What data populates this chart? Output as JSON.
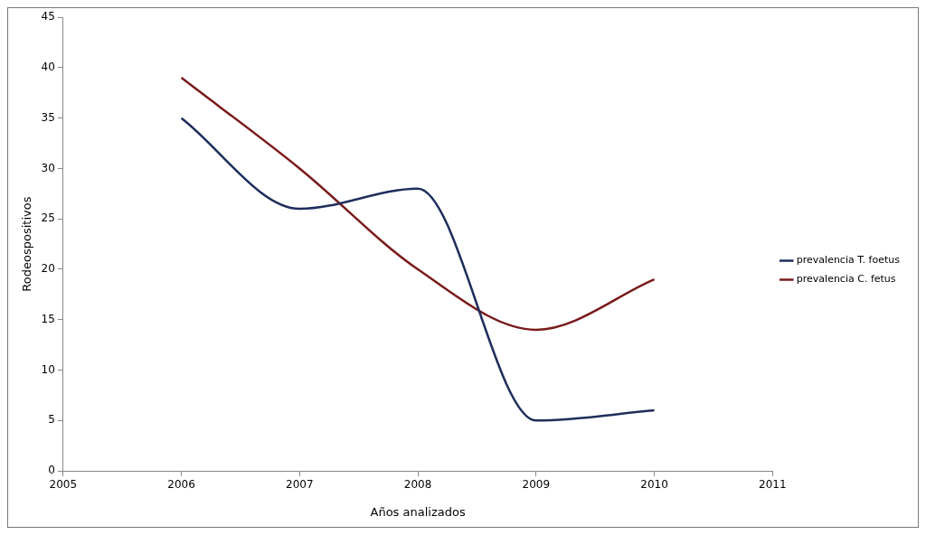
{
  "chart_data": {
    "type": "line",
    "xlabel": "Años analizados",
    "ylabel": "Rodeospositivos",
    "x": [
      2006,
      2007,
      2008,
      2009,
      2010
    ],
    "series": [
      {
        "name": "prevalencia T. foetus",
        "color": "#1f2d5c",
        "values": [
          35,
          26,
          28,
          5,
          6
        ]
      },
      {
        "name": "prevalencia C. fetus",
        "color": "#7a1a1a",
        "values": [
          39,
          30,
          20,
          14,
          19
        ]
      }
    ],
    "xlim": [
      2005,
      2011
    ],
    "xticks": [
      2005,
      2006,
      2007,
      2008,
      2009,
      2010,
      2011
    ],
    "ylim": [
      0,
      45
    ],
    "yticks": [
      0,
      5,
      10,
      15,
      20,
      25,
      30,
      35,
      40,
      45
    ],
    "grid": false,
    "legend": "right",
    "marker": "none",
    "line_style": "solid"
  }
}
